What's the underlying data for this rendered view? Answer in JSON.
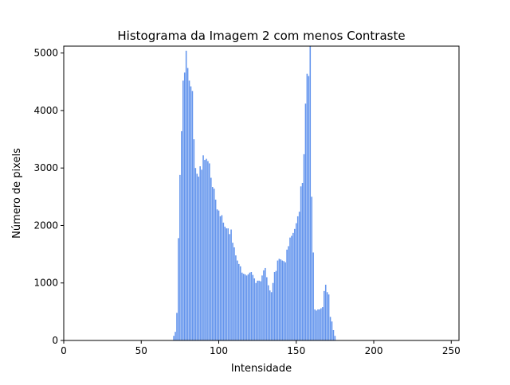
{
  "chart_data": {
    "type": "bar",
    "title": "Histograma da Imagem 2 com menos Contraste",
    "xlabel": "Intensidade",
    "ylabel": "Número de pixels",
    "xlim": [
      0,
      255
    ],
    "ylim": [
      0,
      5120
    ],
    "xticks": [
      0,
      50,
      100,
      150,
      200,
      250
    ],
    "yticks": [
      0,
      1000,
      2000,
      3000,
      4000,
      5000
    ],
    "grid": false,
    "bar_color": "#6495ed",
    "x": [
      71,
      72,
      73,
      74,
      75,
      76,
      77,
      78,
      79,
      80,
      81,
      82,
      83,
      84,
      85,
      86,
      87,
      88,
      89,
      90,
      91,
      92,
      93,
      94,
      95,
      96,
      97,
      98,
      99,
      100,
      101,
      102,
      103,
      104,
      105,
      106,
      107,
      108,
      109,
      110,
      111,
      112,
      113,
      114,
      115,
      116,
      117,
      118,
      119,
      120,
      121,
      122,
      123,
      124,
      125,
      126,
      127,
      128,
      129,
      130,
      131,
      132,
      133,
      134,
      135,
      136,
      137,
      138,
      139,
      140,
      141,
      142,
      143,
      144,
      145,
      146,
      147,
      148,
      149,
      150,
      151,
      152,
      153,
      154,
      155,
      156,
      157,
      158,
      159,
      160,
      161,
      162,
      163,
      164,
      165,
      166,
      167,
      168,
      169,
      170,
      171,
      172,
      173,
      174,
      175,
      176,
      177,
      178,
      179,
      180
    ],
    "values": [
      80,
      150,
      480,
      1780,
      2880,
      3640,
      4520,
      4660,
      5040,
      4740,
      4520,
      4420,
      4340,
      3500,
      3000,
      2900,
      2850,
      3030,
      2970,
      3220,
      3140,
      3160,
      3120,
      3080,
      2830,
      2670,
      2640,
      2450,
      2280,
      2260,
      2160,
      2180,
      2050,
      1980,
      1950,
      1950,
      1850,
      1930,
      1700,
      1620,
      1480,
      1390,
      1330,
      1290,
      1180,
      1160,
      1150,
      1130,
      1150,
      1180,
      1190,
      1140,
      1080,
      1000,
      1040,
      1040,
      1030,
      1130,
      1220,
      1260,
      1100,
      960,
      870,
      840,
      1000,
      1190,
      1210,
      1390,
      1420,
      1410,
      1390,
      1380,
      1360,
      1580,
      1640,
      1790,
      1820,
      1870,
      1940,
      2040,
      2160,
      2240,
      2680,
      2740,
      3240,
      4120,
      4640,
      4600,
      5120,
      2500,
      1530,
      540,
      520,
      540,
      540,
      560,
      580,
      860,
      970,
      840,
      800,
      410,
      330,
      180,
      80,
      0,
      0,
      0,
      0,
      0
    ]
  }
}
